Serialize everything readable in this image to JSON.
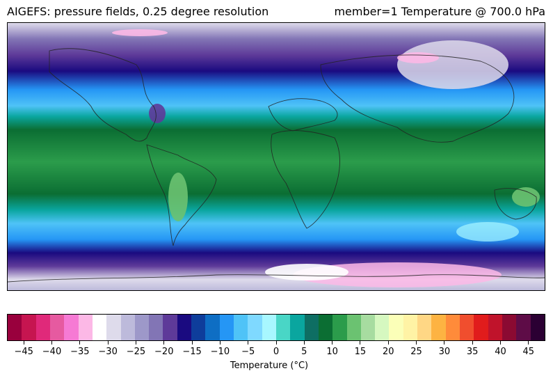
{
  "header": {
    "title_left": "AIGEFS: pressure fields, 0.25 degree resolution",
    "title_right": "member=1 Temperature @ 700.0 hPa"
  },
  "colorbar": {
    "label": "Temperature (°C)",
    "min": -48,
    "max": 48,
    "step": 3,
    "tick_labels": [
      "−45",
      "−40",
      "−35",
      "−30",
      "−25",
      "−20",
      "−15",
      "−10",
      "−5",
      "0",
      "5",
      "10",
      "15",
      "20",
      "25",
      "30",
      "35",
      "40",
      "45"
    ],
    "tick_values": [
      -45,
      -40,
      -35,
      -30,
      -25,
      -20,
      -15,
      -10,
      -5,
      0,
      5,
      10,
      15,
      20,
      25,
      30,
      35,
      40,
      45
    ],
    "colors": [
      "#99003d",
      "#c61550",
      "#e0297a",
      "#e65aa0",
      "#f67ad4",
      "#fcb8e6",
      "#ffffff",
      "#dedbeb",
      "#bdbadb",
      "#9d98c9",
      "#8275b5",
      "#5e3a99",
      "#1a0a80",
      "#0e3d9b",
      "#0e6ec4",
      "#2596f5",
      "#4fc3f7",
      "#7fd9ff",
      "#a8f7ff",
      "#49d6c6",
      "#0aa69f",
      "#0e6e63",
      "#0b6e33",
      "#2b9c4b",
      "#6bc271",
      "#a7dca0",
      "#d6f8c0",
      "#fbffb8",
      "#fff3a5",
      "#ffd785",
      "#fdb342",
      "#ff8b3a",
      "#f04e2e",
      "#e11c1c",
      "#c0132b",
      "#8b0a32",
      "#5e0c47",
      "#2b0033"
    ]
  },
  "map": {
    "bands": [
      {
        "name": "arctic",
        "color": "#5e3a99"
      },
      {
        "name": "north-cold",
        "color": "#1a0a80"
      },
      {
        "name": "north-cool",
        "color": "#2596f5"
      },
      {
        "name": "north-mild",
        "color": "#0aa69f"
      },
      {
        "name": "tropics",
        "color": "#0b6e33"
      },
      {
        "name": "tropics-warm",
        "color": "#2b9c4b"
      },
      {
        "name": "south-mild",
        "color": "#0aa69f"
      },
      {
        "name": "south-cool",
        "color": "#4fc3f7"
      },
      {
        "name": "south-cold",
        "color": "#1a0a80"
      },
      {
        "name": "antarctic",
        "color": "#5e3a99"
      }
    ]
  }
}
